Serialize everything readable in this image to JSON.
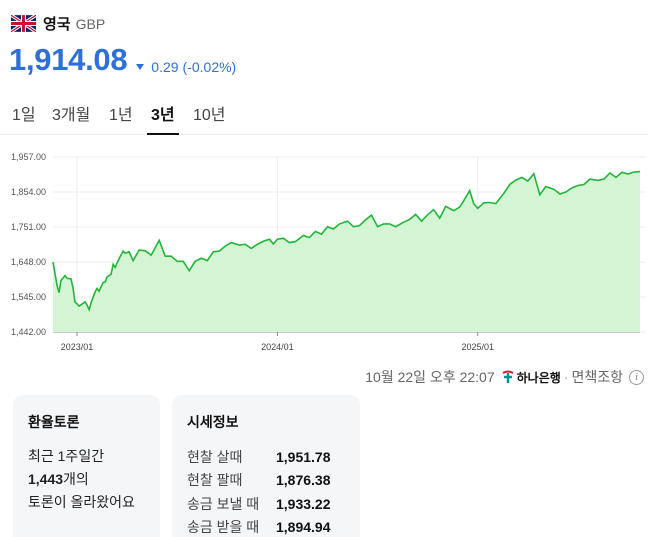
{
  "header": {
    "country": "영국",
    "currency_code": "GBP",
    "flag_icon": "uk-flag-icon"
  },
  "price": {
    "value": "1,914.08",
    "change": "0.29",
    "change_percent": "(-0.02%)",
    "direction": "down",
    "color": "#2f6fd8"
  },
  "tabs": [
    {
      "label": "1일",
      "active": false
    },
    {
      "label": "3개월",
      "active": false
    },
    {
      "label": "1년",
      "active": false
    },
    {
      "label": "3년",
      "active": true
    },
    {
      "label": "10년",
      "active": false
    }
  ],
  "chart_data": {
    "type": "area",
    "y_ticks": [
      "1,957.00",
      "1,854.00",
      "1,751.00",
      "1,648.00",
      "1,545.00",
      "1,442.00"
    ],
    "ylim": [
      1442,
      1957
    ],
    "x_ticks": [
      "2023/01",
      "2024/01",
      "2025/01"
    ],
    "x_tick_dates": [
      2023.0,
      2024.0,
      2025.0
    ],
    "x_range": [
      2022.88,
      2025.81
    ],
    "grid": true,
    "line_color": "#22b53a",
    "fill_color": "#d4f5d3",
    "series": [
      {
        "x": [
          2022.88,
          2022.9,
          2022.91,
          2022.92,
          2022.94,
          2022.95,
          2022.97,
          2022.98,
          2022.99,
          2023.0,
          2023.01,
          2023.02,
          2023.04,
          2023.05,
          2023.06,
          2023.07,
          2023.09,
          2023.1,
          2023.11,
          2023.13,
          2023.14,
          2023.15,
          2023.17,
          2023.18,
          2023.19,
          2023.21,
          2023.23,
          2023.24,
          2023.26,
          2023.28,
          2023.31,
          2023.34,
          2023.37,
          2023.41,
          2023.44,
          2023.47,
          2023.5,
          2023.53,
          2023.56,
          2023.59,
          2023.62,
          2023.65,
          2023.68,
          2023.71,
          2023.74,
          2023.77,
          2023.81,
          2023.84,
          2023.87,
          2023.9,
          2023.93,
          2023.96,
          2023.98,
          2024.0,
          2024.03,
          2024.06,
          2024.09,
          2024.13,
          2024.16,
          2024.19,
          2024.22,
          2024.25,
          2024.28,
          2024.31,
          2024.35,
          2024.38,
          2024.41,
          2024.44,
          2024.47,
          2024.5,
          2024.53,
          2024.56,
          2024.59,
          2024.63,
          2024.66,
          2024.69,
          2024.72,
          2024.75,
          2024.78,
          2024.81,
          2024.84,
          2024.88,
          2024.91,
          2024.93,
          2024.96,
          2024.98,
          2025.0,
          2025.03,
          2025.06,
          2025.09,
          2025.13,
          2025.16,
          2025.19,
          2025.22,
          2025.25,
          2025.28,
          2025.31,
          2025.34,
          2025.38,
          2025.41,
          2025.44,
          2025.47,
          2025.5,
          2025.53,
          2025.56,
          2025.6,
          2025.63,
          2025.66,
          2025.69,
          2025.72,
          2025.75,
          2025.78,
          2025.81
        ],
        "y": [
          1648,
          1580,
          1558,
          1594,
          1608,
          1600,
          1598,
          1572,
          1530,
          1525,
          1518,
          1522,
          1531,
          1521,
          1508,
          1528,
          1560,
          1570,
          1562,
          1588,
          1589,
          1604,
          1612,
          1641,
          1632,
          1658,
          1680,
          1674,
          1678,
          1652,
          1683,
          1681,
          1668,
          1712,
          1665,
          1665,
          1650,
          1650,
          1622,
          1650,
          1659,
          1652,
          1678,
          1680,
          1695,
          1705,
          1698,
          1700,
          1688,
          1700,
          1709,
          1715,
          1701,
          1715,
          1718,
          1705,
          1708,
          1726,
          1720,
          1738,
          1730,
          1752,
          1745,
          1760,
          1768,
          1752,
          1755,
          1772,
          1786,
          1752,
          1760,
          1760,
          1752,
          1765,
          1773,
          1788,
          1768,
          1787,
          1802,
          1777,
          1812,
          1799,
          1810,
          1828,
          1858,
          1820,
          1806,
          1822,
          1823,
          1820,
          1850,
          1876,
          1889,
          1897,
          1886,
          1908,
          1846,
          1870,
          1862,
          1848,
          1854,
          1866,
          1873,
          1876,
          1892,
          1888,
          1892,
          1910,
          1897,
          1912,
          1907,
          1913,
          1914
        ]
      }
    ]
  },
  "timestamp": {
    "text": "10월 22일 오후 22:07",
    "source": "하나은행",
    "disclaimer": "면책조항",
    "info_icon": "info-icon"
  },
  "forum_card": {
    "title": "환율토론",
    "line1": "최근 1주일간",
    "count": "1,443",
    "count_suffix": "개의",
    "line3": "토론이 올라왔어요"
  },
  "quote_card": {
    "title": "시세정보",
    "rows": [
      {
        "label": "현찰 살때",
        "value": "1,951.78"
      },
      {
        "label": "현찰 팔때",
        "value": "1,876.38"
      },
      {
        "label": "송금 보낼 때",
        "value": "1,933.22"
      },
      {
        "label": "송금 받을 때",
        "value": "1,894.94"
      }
    ]
  }
}
